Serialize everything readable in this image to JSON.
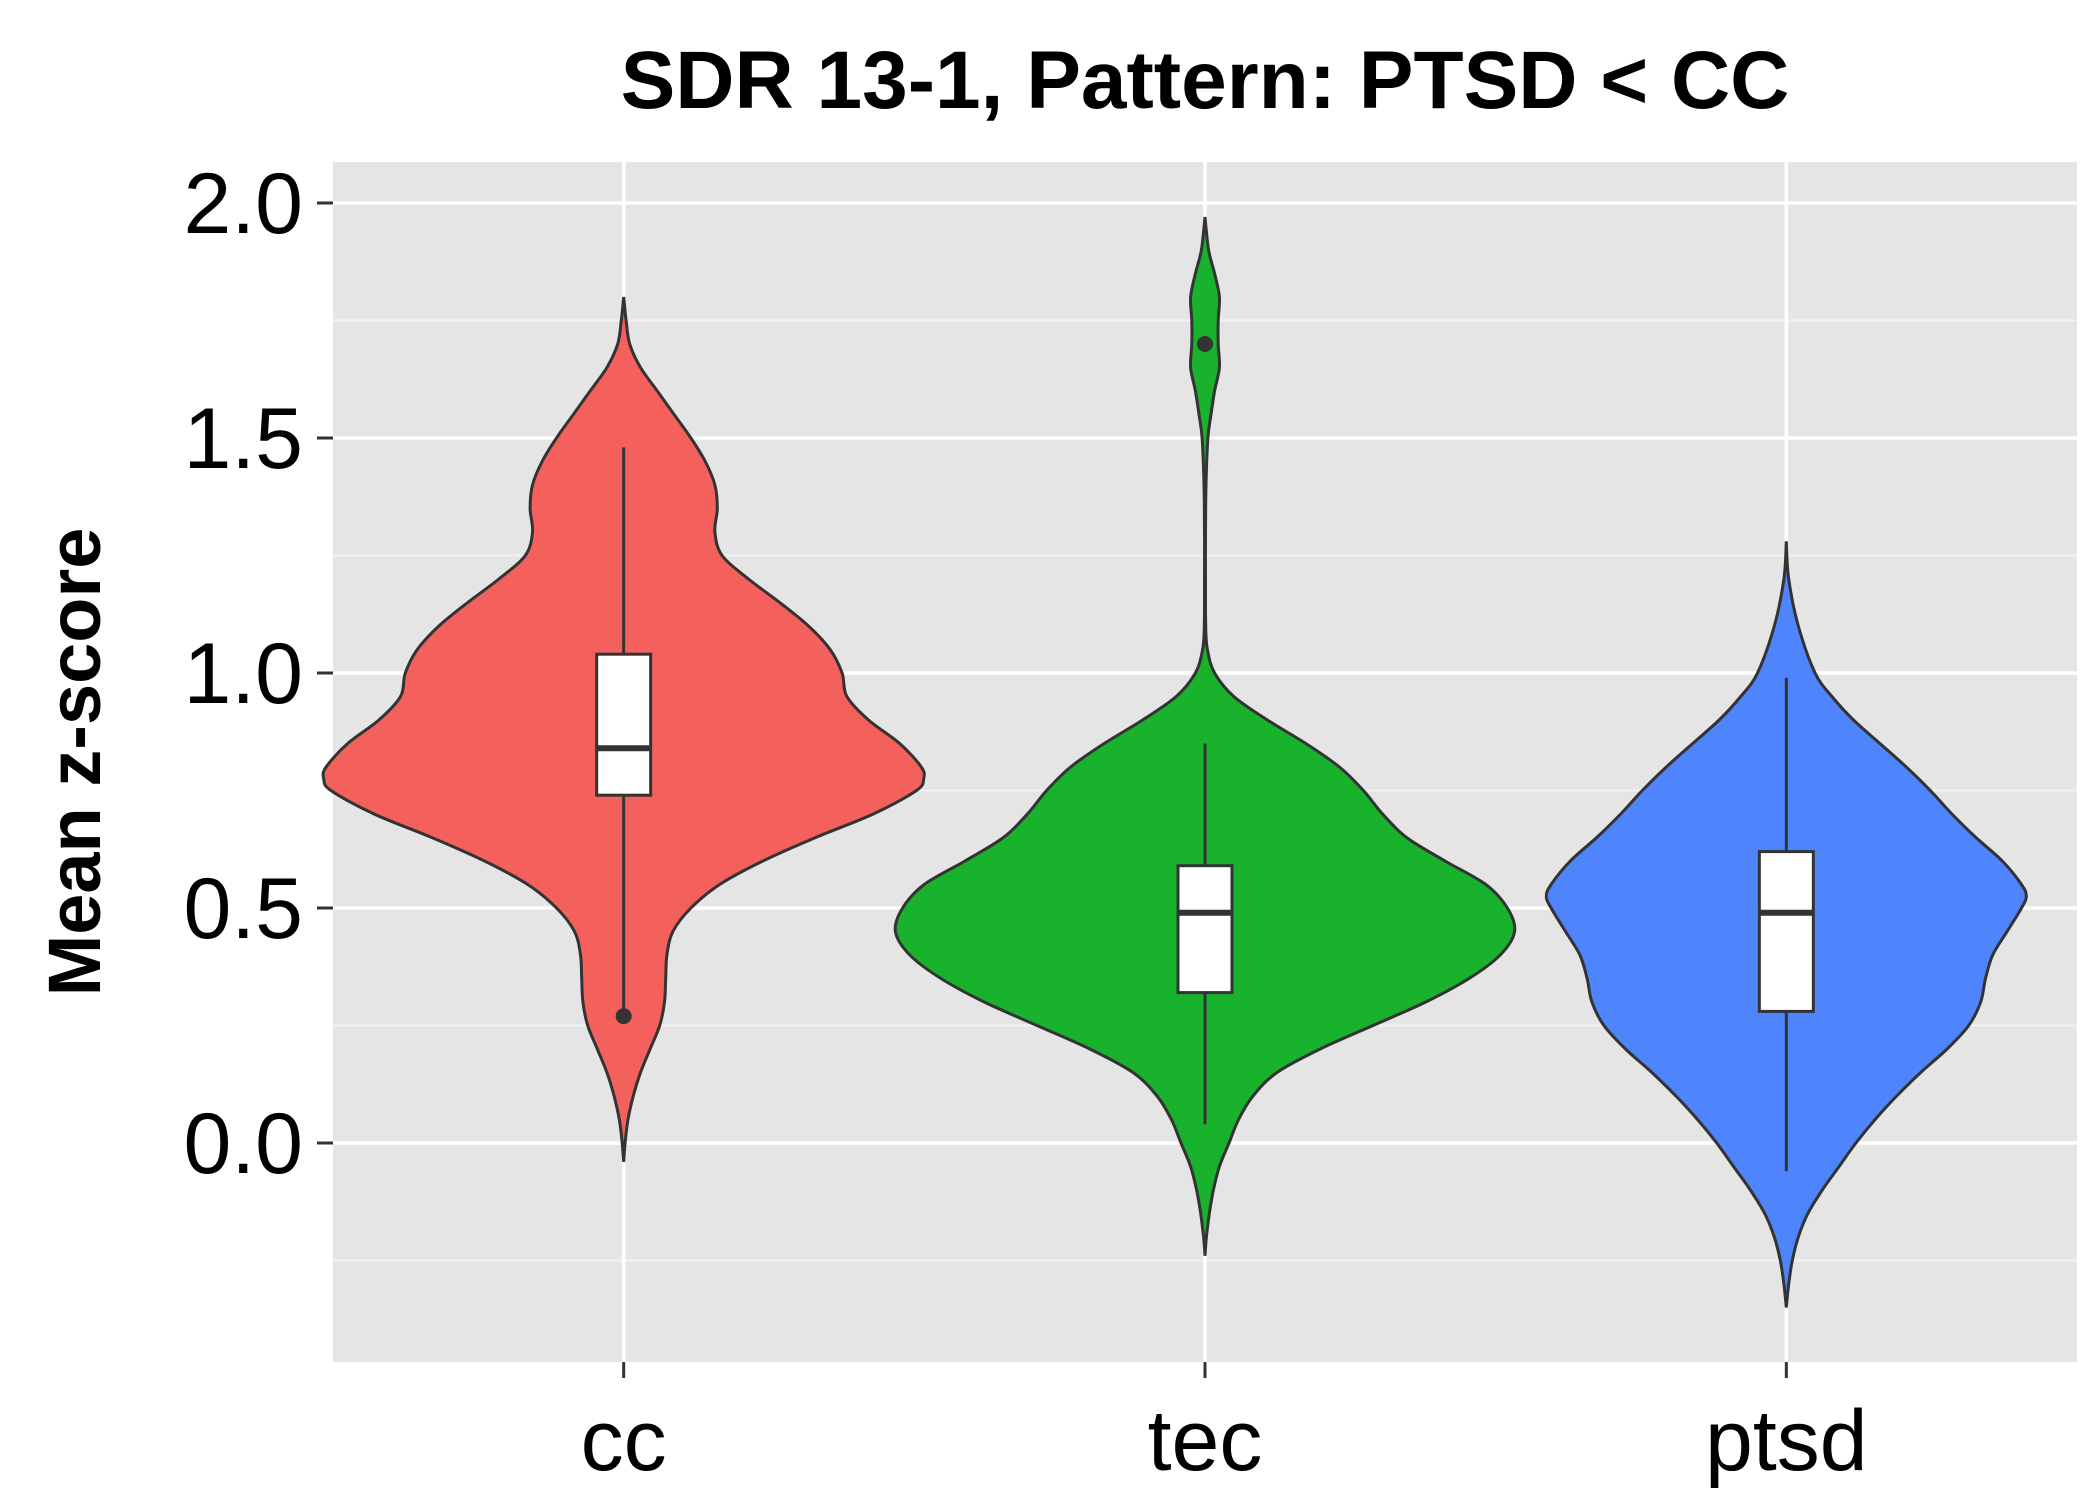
{
  "chart_data": {
    "type": "violin",
    "title": "SDR 13-1, Pattern: PTSD < CC",
    "xlabel": "",
    "ylabel": "Mean z-score",
    "ylim": [
      -0.45,
      2.1
    ],
    "yticks": [
      0.0,
      0.5,
      1.0,
      1.5,
      2.0
    ],
    "ytick_labels": [
      "0.0",
      "0.5",
      "1.0",
      "1.5",
      "2.0"
    ],
    "grid": true,
    "background": "#e5e5e5",
    "categories": [
      "cc",
      "tec",
      "ptsd"
    ],
    "groups": [
      {
        "name": "cc",
        "color": "#f4615d",
        "density": [
          [
            1.8,
            0.0
          ],
          [
            1.75,
            0.01
          ],
          [
            1.7,
            0.025
          ],
          [
            1.65,
            0.07
          ],
          [
            1.6,
            0.14
          ],
          [
            1.55,
            0.21
          ],
          [
            1.5,
            0.28
          ],
          [
            1.45,
            0.34
          ],
          [
            1.4,
            0.38
          ],
          [
            1.35,
            0.39
          ],
          [
            1.3,
            0.38
          ],
          [
            1.25,
            0.41
          ],
          [
            1.2,
            0.52
          ],
          [
            1.15,
            0.65
          ],
          [
            1.1,
            0.77
          ],
          [
            1.05,
            0.86
          ],
          [
            1.0,
            0.91
          ],
          [
            0.95,
            0.93
          ],
          [
            0.9,
            1.02
          ],
          [
            0.85,
            1.15
          ],
          [
            0.8,
            1.24
          ],
          [
            0.775,
            1.25
          ],
          [
            0.75,
            1.22
          ],
          [
            0.7,
            1.04
          ],
          [
            0.65,
            0.8
          ],
          [
            0.6,
            0.58
          ],
          [
            0.55,
            0.4
          ],
          [
            0.5,
            0.28
          ],
          [
            0.45,
            0.205
          ],
          [
            0.4,
            0.18
          ],
          [
            0.35,
            0.175
          ],
          [
            0.3,
            0.17
          ],
          [
            0.25,
            0.15
          ],
          [
            0.2,
            0.11
          ],
          [
            0.15,
            0.07
          ],
          [
            0.1,
            0.04
          ],
          [
            0.05,
            0.018
          ],
          [
            0.0,
            0.006
          ],
          [
            -0.04,
            0.0
          ]
        ],
        "box": {
          "min": 0.27,
          "q1": 0.74,
          "median": 0.84,
          "q3": 1.04,
          "max": 1.48
        },
        "outliers": [
          0.27
        ]
      },
      {
        "name": "tec",
        "color": "#19b22c",
        "density": [
          [
            1.97,
            0.0
          ],
          [
            1.9,
            0.015
          ],
          [
            1.85,
            0.04
          ],
          [
            1.8,
            0.06
          ],
          [
            1.75,
            0.055
          ],
          [
            1.7,
            0.055
          ],
          [
            1.65,
            0.06
          ],
          [
            1.6,
            0.04
          ],
          [
            1.55,
            0.025
          ],
          [
            1.5,
            0.012
          ],
          [
            1.4,
            0.004
          ],
          [
            1.3,
            0.002
          ],
          [
            1.2,
            0.002
          ],
          [
            1.1,
            0.003
          ],
          [
            1.05,
            0.01
          ],
          [
            1.0,
            0.04
          ],
          [
            0.95,
            0.12
          ],
          [
            0.9,
            0.26
          ],
          [
            0.85,
            0.42
          ],
          [
            0.8,
            0.56
          ],
          [
            0.75,
            0.66
          ],
          [
            0.7,
            0.74
          ],
          [
            0.65,
            0.84
          ],
          [
            0.6,
            1.0
          ],
          [
            0.55,
            1.17
          ],
          [
            0.5,
            1.26
          ],
          [
            0.45,
            1.29
          ],
          [
            0.4,
            1.23
          ],
          [
            0.35,
            1.1
          ],
          [
            0.3,
            0.92
          ],
          [
            0.25,
            0.7
          ],
          [
            0.2,
            0.48
          ],
          [
            0.15,
            0.3
          ],
          [
            0.1,
            0.2
          ],
          [
            0.05,
            0.14
          ],
          [
            0.0,
            0.1
          ],
          [
            -0.05,
            0.06
          ],
          [
            -0.1,
            0.035
          ],
          [
            -0.15,
            0.018
          ],
          [
            -0.2,
            0.006
          ],
          [
            -0.24,
            0.0
          ]
        ],
        "box": {
          "min": 0.04,
          "q1": 0.32,
          "median": 0.49,
          "q3": 0.59,
          "max": 0.85
        },
        "outliers": [
          1.7
        ]
      },
      {
        "name": "ptsd",
        "color": "#4e84fc",
        "density": [
          [
            1.28,
            0.0
          ],
          [
            1.2,
            0.01
          ],
          [
            1.1,
            0.05
          ],
          [
            1.0,
            0.12
          ],
          [
            0.95,
            0.19
          ],
          [
            0.9,
            0.28
          ],
          [
            0.85,
            0.39
          ],
          [
            0.8,
            0.5
          ],
          [
            0.75,
            0.6
          ],
          [
            0.7,
            0.69
          ],
          [
            0.65,
            0.79
          ],
          [
            0.6,
            0.9
          ],
          [
            0.55,
            0.98
          ],
          [
            0.525,
            1.0
          ],
          [
            0.5,
            0.98
          ],
          [
            0.45,
            0.92
          ],
          [
            0.4,
            0.86
          ],
          [
            0.35,
            0.83
          ],
          [
            0.3,
            0.81
          ],
          [
            0.25,
            0.76
          ],
          [
            0.2,
            0.67
          ],
          [
            0.15,
            0.56
          ],
          [
            0.1,
            0.46
          ],
          [
            0.05,
            0.37
          ],
          [
            0.0,
            0.29
          ],
          [
            -0.05,
            0.22
          ],
          [
            -0.1,
            0.15
          ],
          [
            -0.15,
            0.09
          ],
          [
            -0.2,
            0.05
          ],
          [
            -0.25,
            0.025
          ],
          [
            -0.3,
            0.01
          ],
          [
            -0.35,
            0.0
          ]
        ],
        "box": {
          "min": -0.06,
          "q1": 0.28,
          "median": 0.49,
          "q3": 0.62,
          "max": 0.99
        },
        "outliers": []
      }
    ]
  }
}
